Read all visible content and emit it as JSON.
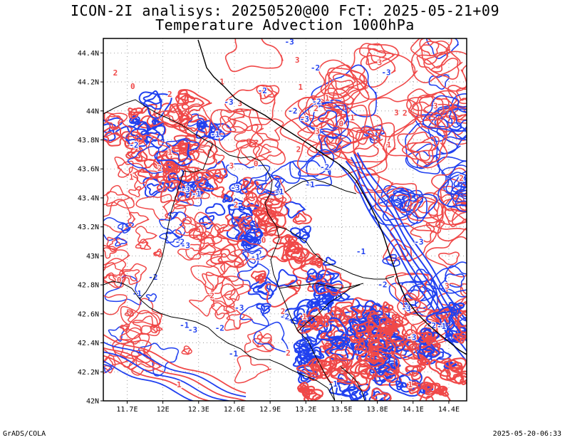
{
  "title": {
    "line1": "ICON-2I analisys: 20250520@00 FcT: 2025-05-21+09",
    "line2": "Temperature Advection 1000hPa"
  },
  "axes": {
    "lat_labels": [
      "44.4N",
      "44.2N",
      "44N",
      "43.8N",
      "43.6N",
      "43.4N",
      "43.2N",
      "43N",
      "42.8N",
      "42.6N",
      "42.4N",
      "42.2N",
      "42N"
    ],
    "lon_labels": [
      "11.7E",
      "12E",
      "12.3E",
      "12.6E",
      "12.9E",
      "13.2E",
      "13.5E",
      "13.8E",
      "14.1E",
      "14.4E"
    ],
    "lat_range": [
      42.0,
      44.5
    ],
    "lon_range": [
      11.5,
      14.55
    ]
  },
  "colors": {
    "warm": "#f04848",
    "cold": "#2040f0",
    "border": "#000000",
    "grid": "#8c8c8c"
  },
  "contour_labels": [
    "0",
    "1",
    "-1",
    "2",
    "-2",
    "3",
    "-3"
  ],
  "footer": {
    "left": "GrADS/COLA",
    "right": "2025-05-20-06:33"
  }
}
